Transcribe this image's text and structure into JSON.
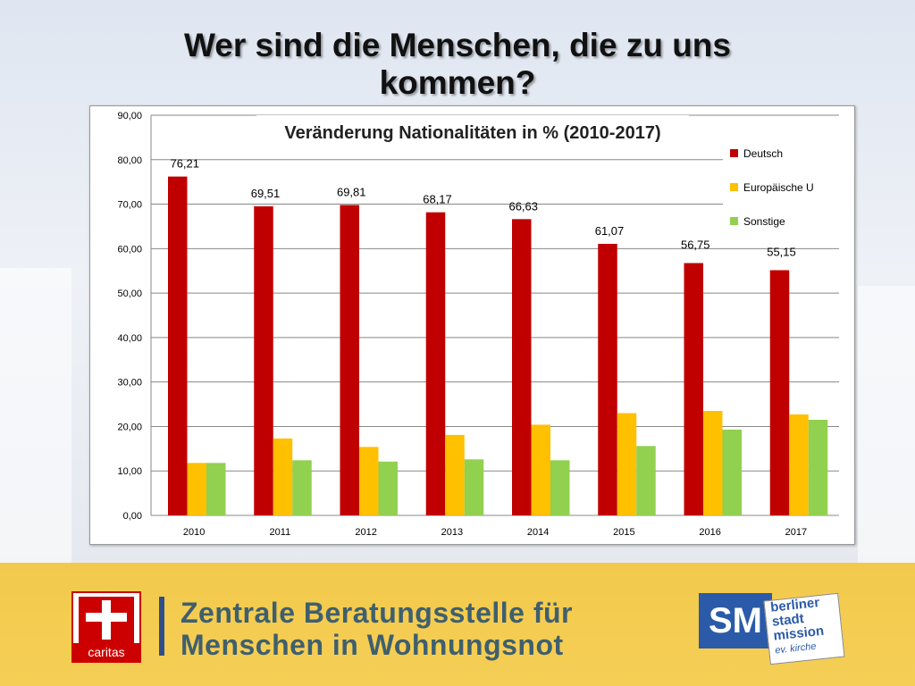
{
  "slide": {
    "title_line1": "Wer sind die Menschen, die zu uns",
    "title_line2": "kommen?"
  },
  "footer": {
    "caritas_label": "caritas",
    "text_line1": "Zentrale Beratungsstelle für",
    "text_line2": "Menschen in Wohnungsnot",
    "sm_label": "SM",
    "bsm_line1": "berliner",
    "bsm_line2": "stadt",
    "bsm_line3": "mission",
    "bsm_line4": "ev. kirche"
  },
  "colors": {
    "deutsch": "#c00000",
    "europaeische": "#ffc000",
    "sonstige": "#92d050",
    "footer_bg": "#f5cf55"
  },
  "chart_data": {
    "type": "bar",
    "title": "Veränderung Nationalitäten in % (2010-2017)",
    "categories": [
      "2010",
      "2011",
      "2012",
      "2013",
      "2014",
      "2015",
      "2016",
      "2017"
    ],
    "ylim": [
      0,
      90
    ],
    "yticks": [
      "0,00",
      "10,00",
      "20,00",
      "30,00",
      "40,00",
      "50,00",
      "60,00",
      "70,00",
      "80,00",
      "90,00"
    ],
    "grid": true,
    "legend_position": "top-right",
    "series": [
      {
        "name": "Deutsch",
        "color": "#c00000",
        "values": [
          76.21,
          69.51,
          69.81,
          68.17,
          66.63,
          61.07,
          56.75,
          55.15
        ],
        "labels": [
          "76,21",
          "69,51",
          "69,81",
          "68,17",
          "66,63",
          "61,07",
          "56,75",
          "55,15"
        ]
      },
      {
        "name": "Europäische U",
        "color": "#ffc000",
        "values": [
          11.8,
          17.3,
          15.4,
          18.1,
          20.4,
          23.0,
          23.5,
          22.7
        ]
      },
      {
        "name": "Sonstige",
        "color": "#92d050",
        "values": [
          11.8,
          12.4,
          12.1,
          12.6,
          12.4,
          15.6,
          19.3,
          21.5
        ]
      }
    ]
  }
}
